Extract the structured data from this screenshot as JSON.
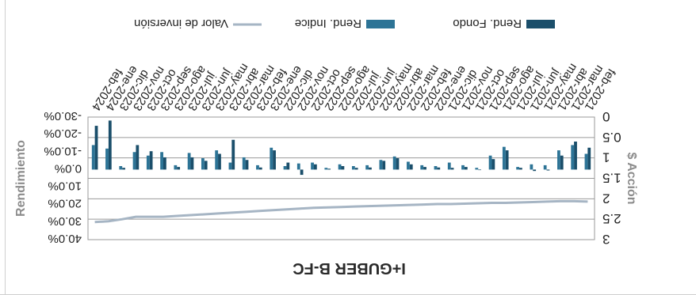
{
  "chart_data": {
    "type": "bar",
    "title": "I+GUBER B-FC",
    "y_left_label": "$ Acción",
    "y_right_label": "Rendimiento",
    "y_left_ticks": [
      "0",
      "0.5",
      "1",
      "1.5",
      "2",
      "2.5",
      "3"
    ],
    "y_left_range": [
      0,
      3
    ],
    "y_right_ticks": [
      "-30.0%",
      "-20.0%",
      "-10.0%",
      "0.0%",
      "10.0%",
      "20.0%",
      "30.0%",
      "40.0%"
    ],
    "y_right_range": [
      -30,
      40
    ],
    "categories": [
      "feb-2021",
      "mar-2021",
      "abr-2021",
      "may-2021",
      "jun-2021",
      "jul-2021",
      "ago-2021",
      "sep-2021",
      "oct-2021",
      "nov-2021",
      "dic-2021",
      "ene-2022",
      "feb-2022",
      "mar-2022",
      "abr-2022",
      "may-2022",
      "jun-2022",
      "jul-2022",
      "ago-2022",
      "sep-2022",
      "oct-2022",
      "nov-2022",
      "dic-2022",
      "ene-2023",
      "feb-2023",
      "mar-2023",
      "abr-2023",
      "may-2023",
      "jun-2023",
      "jul-2023",
      "ago-2023",
      "sep-2023",
      "oct-2023",
      "nov-2023",
      "dic-2023",
      "ene-2024",
      "feb-2024"
    ],
    "series": [
      {
        "name": "Rend. Fondo",
        "axis": "right",
        "color": "#1b4f6b",
        "values": [
          -12.5,
          -16.0,
          -8.0,
          0.5,
          0.8,
          -1.0,
          -11.0,
          -6.0,
          0.3,
          -1.5,
          -1.0,
          -1.2,
          -1.5,
          -3.0,
          -6.5,
          -5.0,
          -1.2,
          -1.0,
          -2.0,
          -0.5,
          -3.0,
          3.0,
          -4.0,
          -11.0,
          -1.2,
          -5.5,
          -17.0,
          -9.0,
          -5.0,
          -7.0,
          -1.5,
          -7.0,
          -10.5,
          -14.0,
          -1.0,
          -28.0,
          -25.0
        ]
      },
      {
        "name": "Rend. Indice",
        "axis": "right",
        "color": "#2d7496",
        "values": [
          -9.0,
          -14.0,
          -11.0,
          -2.5,
          -3.0,
          -1.5,
          -13.0,
          -8.0,
          -1.0,
          -2.5,
          -4.0,
          -2.0,
          -2.5,
          -4.5,
          -7.5,
          -5.5,
          -2.5,
          -2.0,
          -3.0,
          -1.0,
          -4.0,
          -3.5,
          -2.0,
          -12.5,
          -2.5,
          -7.0,
          -4.0,
          -11.0,
          -6.5,
          -9.5,
          -2.5,
          -10.0,
          -8.0,
          -10.0,
          -2.0,
          -12.0,
          -14.0
        ]
      },
      {
        "name": "Valor de inversión",
        "axis": "left",
        "color": "#a6b5c4",
        "type": "line",
        "values": [
          2.07,
          2.06,
          2.06,
          2.07,
          2.08,
          2.09,
          2.1,
          2.1,
          2.11,
          2.12,
          2.13,
          2.13,
          2.14,
          2.15,
          2.16,
          2.17,
          2.18,
          2.19,
          2.2,
          2.21,
          2.22,
          2.24,
          2.26,
          2.28,
          2.3,
          2.32,
          2.34,
          2.36,
          2.38,
          2.4,
          2.42,
          2.44,
          2.44,
          2.44,
          2.5,
          2.55,
          2.57
        ]
      }
    ],
    "grid": true,
    "legend_position": "bottom"
  }
}
